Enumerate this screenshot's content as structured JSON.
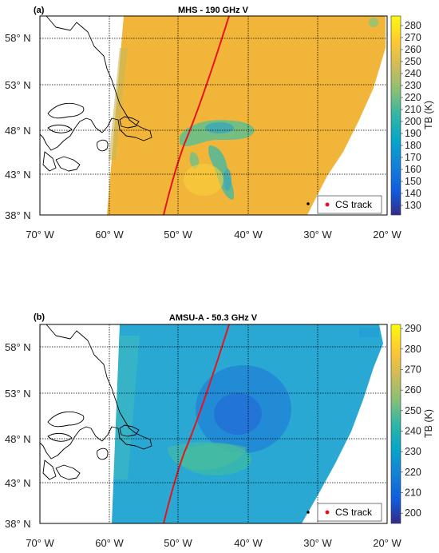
{
  "chart_data": [
    {
      "type": "heatmap",
      "panel_label": "(a)",
      "title": "MHS - 190 GHz V",
      "colorbar_label": "TB (K)",
      "colorbar_ticks": [
        "130",
        "140",
        "150",
        "160",
        "170",
        "180",
        "190",
        "200",
        "210",
        "220",
        "230",
        "240",
        "250",
        "260",
        "270",
        "280"
      ],
      "clim": [
        122,
        288
      ],
      "lon_ticks": [
        "70° W",
        "60° W",
        "50° W",
        "40° W",
        "30° W",
        "20° W"
      ],
      "lat_ticks": [
        "58° N",
        "53° N",
        "48° N",
        "43° N",
        "38° N"
      ],
      "xlim": [
        -70,
        -20
      ],
      "ylim": [
        38,
        60
      ],
      "background_tb": 268,
      "features": "cloud band of lower TB (~200-210 K) around 44-48° N, 41-49° W",
      "legend": [
        "CS track"
      ],
      "legend_position": "bottom-right",
      "grid": true
    },
    {
      "type": "heatmap",
      "panel_label": "(b)",
      "title": "AMSU-A - 50.3 GHz V",
      "colorbar_label": "TB (K)",
      "colorbar_ticks": [
        "200",
        "210",
        "220",
        "230",
        "240",
        "250",
        "260",
        "270",
        "280",
        "290"
      ],
      "clim": [
        195,
        292
      ],
      "lon_ticks": [
        "70° W",
        "60° W",
        "50° W",
        "40° W",
        "30° W",
        "20° W"
      ],
      "lat_ticks": [
        "58° N",
        "53° N",
        "48° N",
        "43° N",
        "38° N"
      ],
      "xlim": [
        -70,
        -20
      ],
      "ylim": [
        38,
        60
      ],
      "background_tb": 232,
      "features": "cold region (~220 K) near 51° N, 45° W; warmer (~240-245 K) near 45-47° N",
      "legend": [
        "CS track"
      ],
      "legend_position": "bottom-right",
      "grid": true
    }
  ],
  "colors": {
    "track": "#e8141c",
    "coast": "#000000",
    "grid": "#000000"
  }
}
